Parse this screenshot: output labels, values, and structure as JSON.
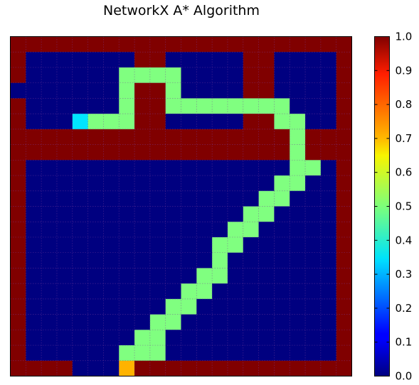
{
  "chart_data": {
    "type": "heatmap",
    "title": "NetworkX A* Algorithm",
    "xlabel": "",
    "ylabel": "",
    "colormap": "jet",
    "grid": true,
    "legend": "none",
    "colorbar": {
      "position": "right",
      "range": [
        0.0,
        1.0
      ],
      "ticks": [
        "0.0",
        "0.1",
        "0.2",
        "0.3",
        "0.4",
        "0.5",
        "0.6",
        "0.7",
        "0.8",
        "0.9",
        "1.0"
      ]
    },
    "value_key": {
      "free": 0.0,
      "start": 0.35,
      "path": 0.5,
      "goal": 0.7,
      "wall": 1.0
    },
    "rows": [
      "WWWWWWWWWWWWWWWWWWWWWW",
      "W.......WW.....WW....W",
      "W......PPPP....WW....W",
      ".......PWWP....WW....W",
      "W......PWWPPPPPPPP...W",
      "W...SPPPWW.....WWPP..W",
      "WWWWWWWWWWWWWWWWWWPWWW",
      "WWWWWWWWWWWWWWWWWWPWWW",
      "W.................PP.W",
      "W................PP..W",
      "W...............PP...W",
      "W..............PP....W",
      "W.............PP.....W",
      "W............PP......W",
      "W............P.......W",
      "W...........PP.......W",
      "W..........PP........W",
      "W.........PP.........W",
      "W........PP..........W",
      "W.......PP...........W",
      "W......PPP...........W",
      "WWWW...GWWWWWWWWWWWWWW"
    ]
  }
}
